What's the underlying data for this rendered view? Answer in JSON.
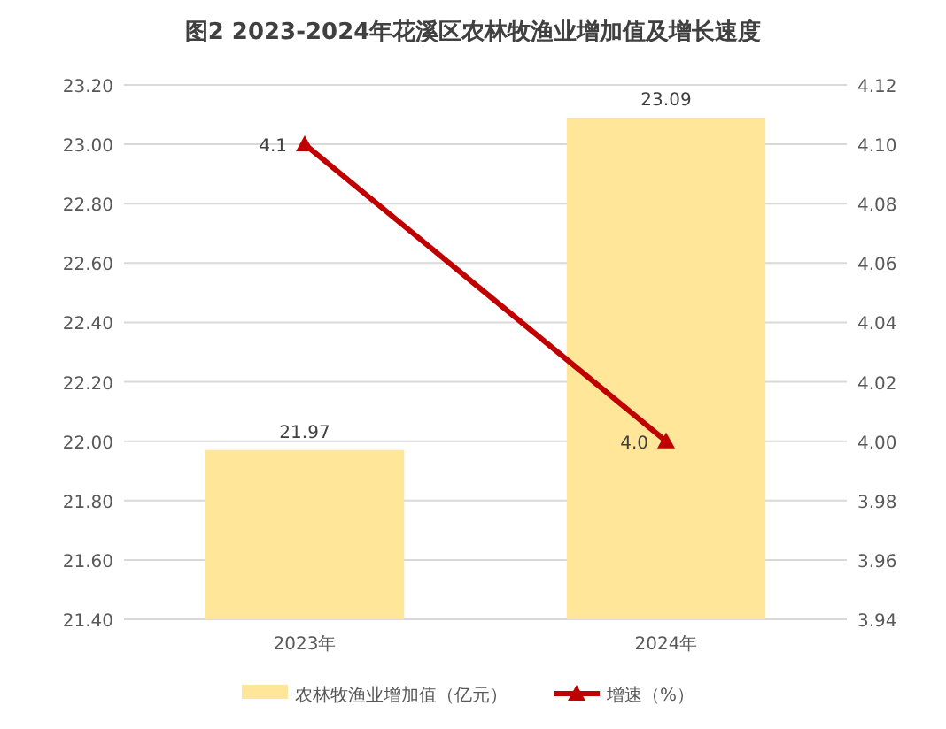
{
  "chart_data": {
    "type": "bar",
    "title": "图2  2023-2024年花溪区农林牧渔业增加值及增长速度",
    "categories": [
      "2023年",
      "2024年"
    ],
    "series": [
      {
        "name": "农林牧渔业增加值（亿元）",
        "color": "#ffe699",
        "values": [
          21.97,
          23.09
        ],
        "value_labels": [
          "21.97",
          "23.09"
        ]
      },
      {
        "name": "增速（%）",
        "type": "line",
        "axis": "y2",
        "color": "#c00000",
        "marker": "triangle",
        "values": [
          4.1,
          4.0
        ],
        "value_labels": [
          "4.1",
          "4.0"
        ]
      }
    ],
    "ylim": [
      21.4,
      23.2
    ],
    "yticks": [
      {
        "value": 21.4,
        "label": "21.40"
      },
      {
        "value": 21.6,
        "label": "21.60"
      },
      {
        "value": 21.8,
        "label": "21.80"
      },
      {
        "value": 22.0,
        "label": "22.00"
      },
      {
        "value": 22.2,
        "label": "22.20"
      },
      {
        "value": 22.4,
        "label": "22.40"
      },
      {
        "value": 22.6,
        "label": "22.60"
      },
      {
        "value": 22.8,
        "label": "22.80"
      },
      {
        "value": 23.0,
        "label": "23.00"
      },
      {
        "value": 23.2,
        "label": "23.20"
      }
    ],
    "y2lim": [
      3.94,
      4.12
    ],
    "y2ticks": [
      {
        "value": 3.94,
        "label": "3.94"
      },
      {
        "value": 3.96,
        "label": "3.96"
      },
      {
        "value": 3.98,
        "label": "3.98"
      },
      {
        "value": 4.0,
        "label": "4.00"
      },
      {
        "value": 4.02,
        "label": "4.02"
      },
      {
        "value": 4.04,
        "label": "4.04"
      },
      {
        "value": 4.06,
        "label": "4.06"
      },
      {
        "value": 4.08,
        "label": "4.08"
      },
      {
        "value": 4.1,
        "label": "4.10"
      },
      {
        "value": 4.12,
        "label": "4.12"
      }
    ],
    "grid": "y",
    "legend": "bottom"
  }
}
